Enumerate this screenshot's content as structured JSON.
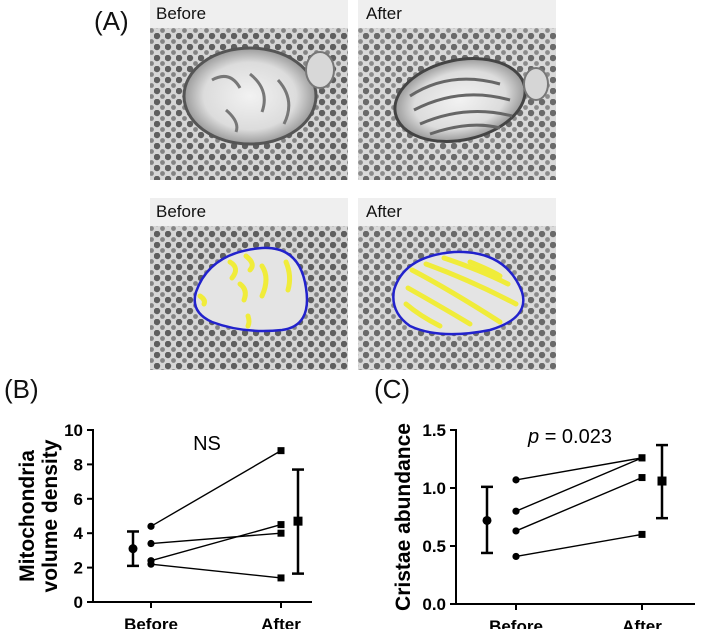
{
  "panel_a": {
    "letter": "(A)",
    "image_labels": [
      "Before",
      "After",
      "Before",
      "After"
    ]
  },
  "colors": {
    "membrane_outline": "#2222cc",
    "cristae_outline": "#f0ec3a",
    "axis": "#000000"
  },
  "chart_data": [
    {
      "panel": "(B)",
      "type": "scatter",
      "ylabel": [
        "Mitochondria",
        "volume density"
      ],
      "annotation": "NS",
      "categories": [
        "Before",
        "After"
      ],
      "ylim": [
        0,
        10
      ],
      "yticks": [
        0,
        2,
        4,
        6,
        8,
        10
      ],
      "ytick_labels": [
        "0",
        "2",
        "4",
        "6",
        "8",
        "10"
      ],
      "pairs": [
        [
          4.4,
          8.8
        ],
        [
          3.4,
          4.0
        ],
        [
          2.4,
          4.5
        ],
        [
          2.2,
          1.4
        ]
      ],
      "summary": [
        {
          "category": "Before",
          "mean": 3.1,
          "low": 2.1,
          "high": 4.1
        },
        {
          "category": "After",
          "mean": 4.7,
          "low": 1.65,
          "high": 7.7
        }
      ]
    },
    {
      "panel": "(C)",
      "type": "scatter",
      "ylabel": [
        "Cristae abundance"
      ],
      "annotation_italic": "p",
      "annotation": " = 0.023",
      "categories": [
        "Before",
        "After"
      ],
      "ylim": [
        0,
        1.5
      ],
      "yticks": [
        0,
        0.5,
        1.0,
        1.5
      ],
      "ytick_labels": [
        "0.0",
        "0.5",
        "1.0",
        "1.5"
      ],
      "pairs": [
        [
          1.07,
          1.26
        ],
        [
          0.8,
          1.26
        ],
        [
          0.63,
          1.09
        ],
        [
          0.41,
          0.6
        ]
      ],
      "summary": [
        {
          "category": "Before",
          "mean": 0.72,
          "low": 0.44,
          "high": 1.01
        },
        {
          "category": "After",
          "mean": 1.06,
          "low": 0.74,
          "high": 1.37
        }
      ]
    }
  ]
}
